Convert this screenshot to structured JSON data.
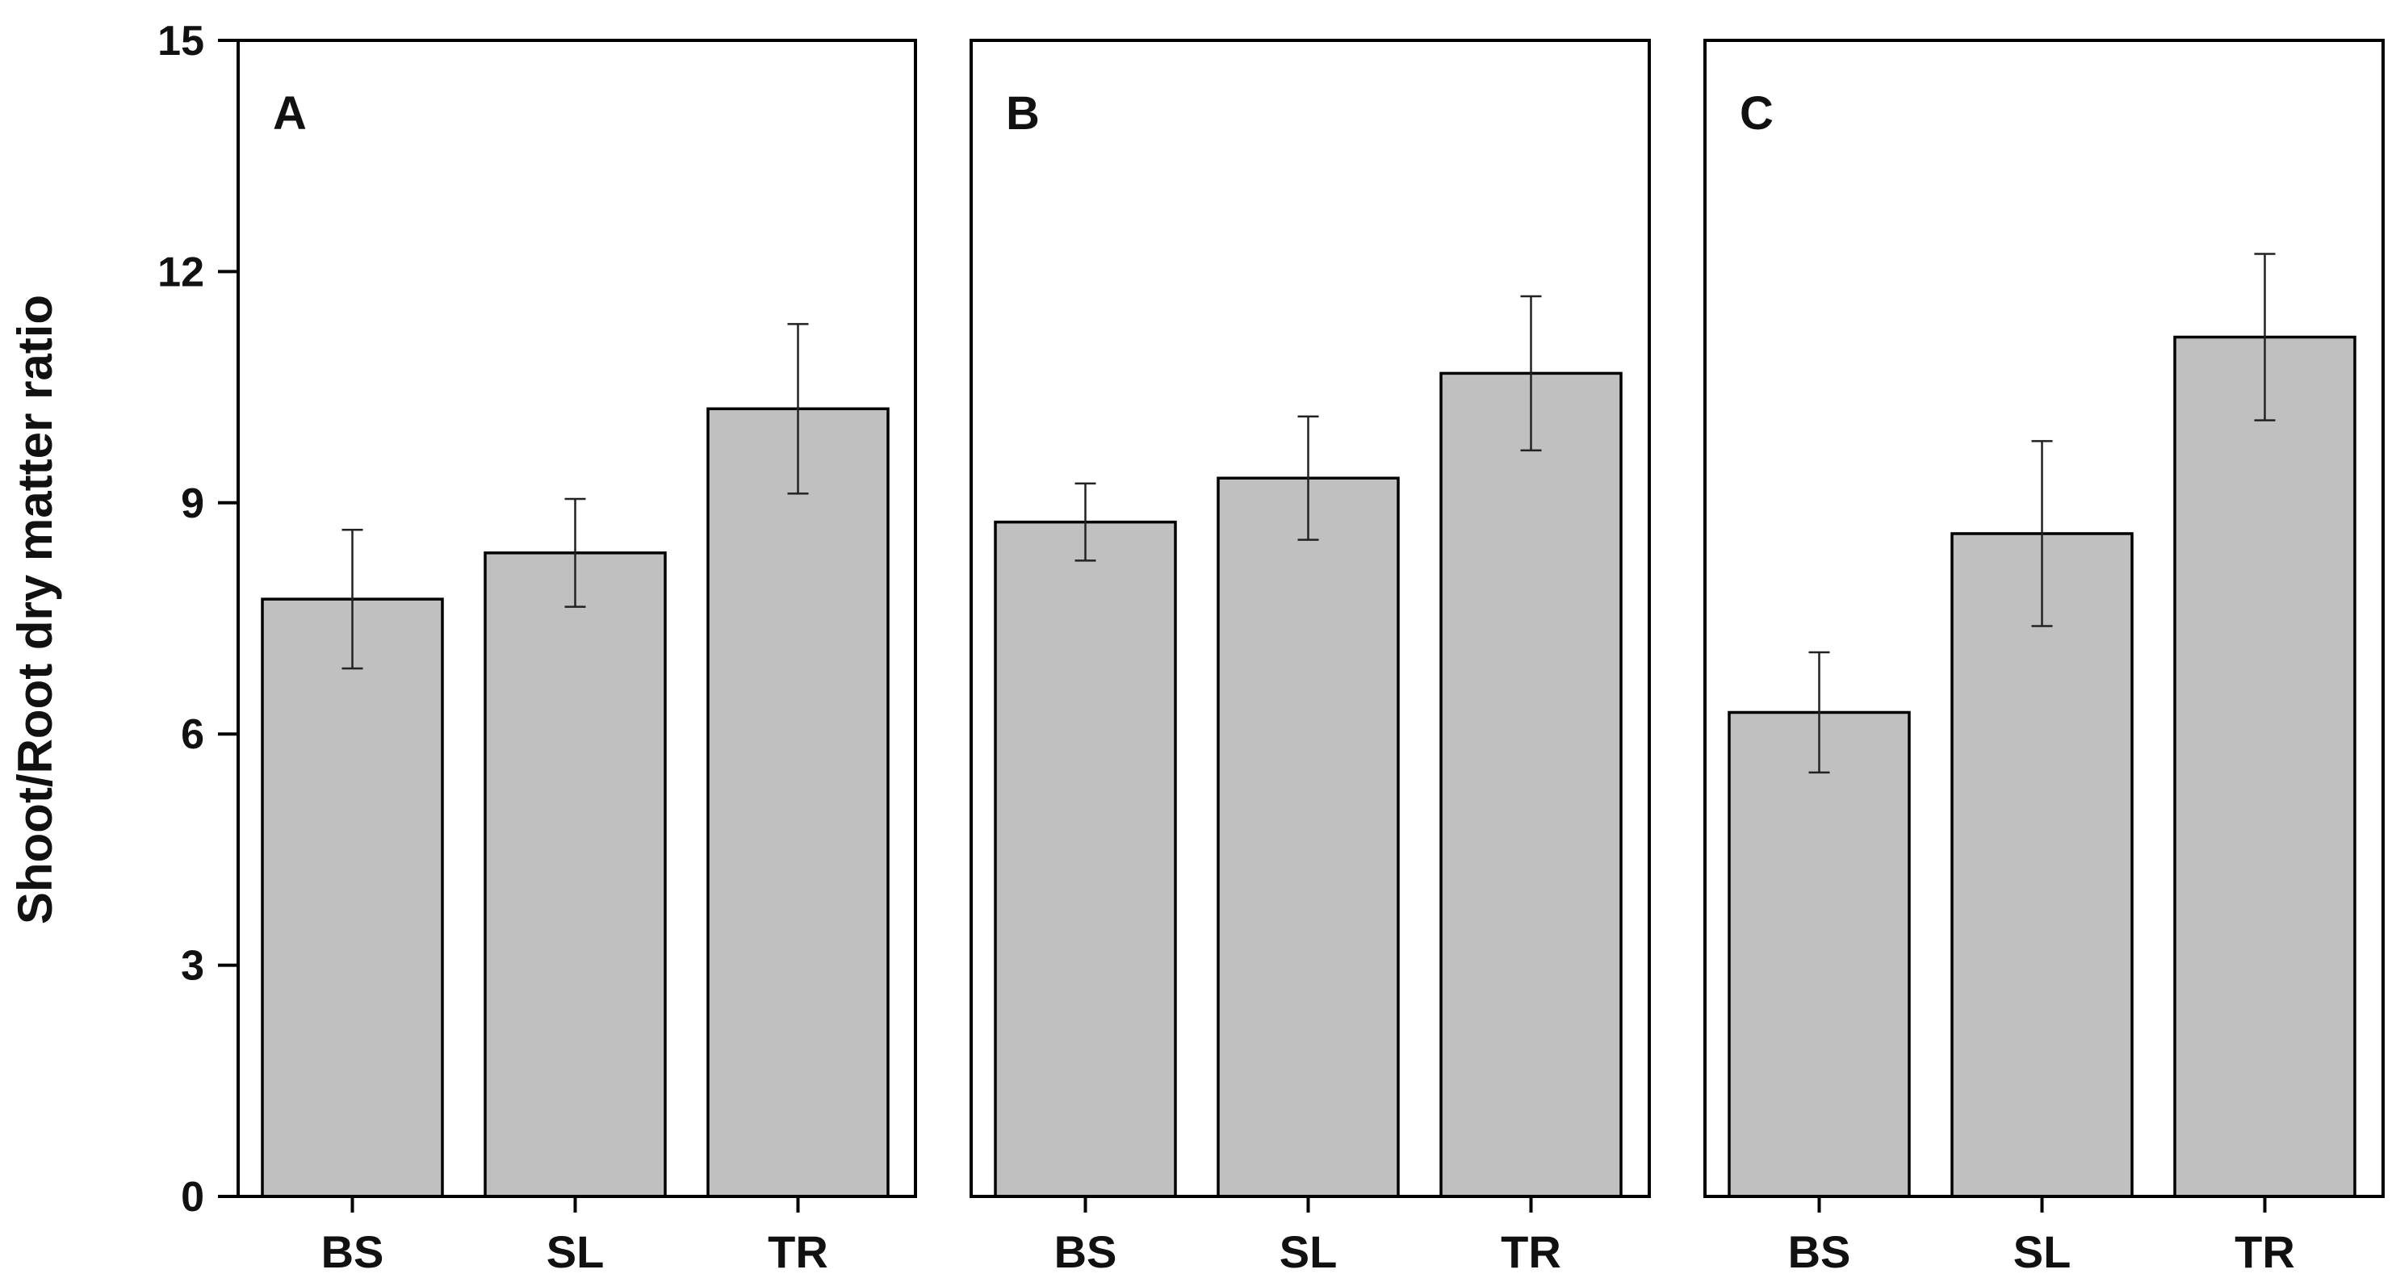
{
  "chart_data": {
    "type": "bar",
    "ylabel": "Shoot/Root dry matter ratio",
    "ylim": [
      0,
      15
    ],
    "yticks": [
      "0",
      "3",
      "6",
      "9",
      "12",
      "15"
    ],
    "categories": [
      "BS",
      "SL",
      "TR"
    ],
    "bar_color": "#c0c0c0",
    "panels": [
      {
        "label": "A",
        "values": [
          7.75,
          8.35,
          10.22
        ],
        "errors": [
          0.9,
          0.7,
          1.1
        ]
      },
      {
        "label": "B",
        "values": [
          8.75,
          9.32,
          10.68
        ],
        "errors": [
          0.5,
          0.8,
          1.0
        ]
      },
      {
        "label": "C",
        "values": [
          6.28,
          8.6,
          11.15
        ],
        "errors": [
          0.78,
          1.2,
          1.08
        ]
      }
    ]
  }
}
